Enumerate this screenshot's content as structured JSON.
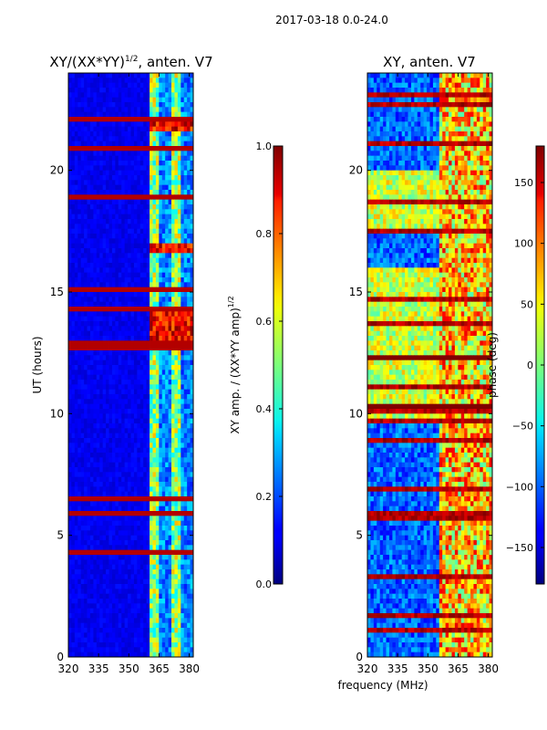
{
  "figure": {
    "suptitle": "2017-03-18 0.0-24.0",
    "shared_xlabel": "frequency (MHz)"
  },
  "chart_data": [
    {
      "type": "heatmap",
      "title": "XY/(XX*YY)",
      "title_sup": "1/2",
      "title_suffix": ", anten. V7",
      "xlabel": "",
      "ylabel": "UT (hours)",
      "xlim": [
        320,
        382
      ],
      "ylim": [
        0,
        24
      ],
      "xticks": [
        320,
        335,
        350,
        365,
        380
      ],
      "yticks": [
        0,
        5,
        10,
        15,
        20
      ],
      "colormap": "jet",
      "colorbar": {
        "label": "XY amp. / (XX*YY amp)",
        "label_sup": "1/2",
        "range": [
          0.0,
          1.0
        ],
        "ticks": [
          "0.0",
          "0.2",
          "0.4",
          "0.6",
          "0.8",
          "1.0"
        ],
        "tick_values": [
          0.0,
          0.2,
          0.4,
          0.6,
          0.8,
          1.0
        ]
      }
    },
    {
      "type": "heatmap",
      "title": "XY, anten. V7",
      "xlabel": "frequency (MHz)",
      "ylabel": "",
      "xlim": [
        320,
        382
      ],
      "ylim": [
        0,
        24
      ],
      "xticks": [
        320,
        335,
        350,
        365,
        380
      ],
      "yticks": [
        0,
        5,
        10,
        15,
        20
      ],
      "colormap": "jet",
      "colorbar": {
        "label": "phase (deg)",
        "range": [
          -180,
          180
        ],
        "ticks": [
          "150",
          "100",
          "50",
          "0",
          "−50",
          "−100",
          "−150"
        ],
        "tick_values": [
          150,
          100,
          50,
          0,
          -50,
          -100,
          -150
        ]
      }
    }
  ]
}
